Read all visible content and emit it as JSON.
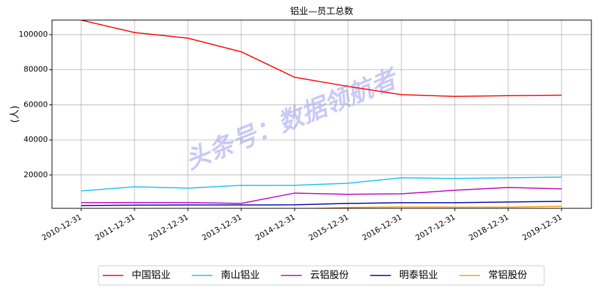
{
  "chart_data": {
    "type": "line",
    "title": "铝业—员工总数",
    "y_label": "(人)",
    "watermark": "头条号：数据领航者",
    "categories": [
      "2010-12-31",
      "2011-12-31",
      "2012-12-31",
      "2013-12-31",
      "2014-12-31",
      "2015-12-31",
      "2016-12-31",
      "2017-12-31",
      "2018-12-31",
      "2019-12-31"
    ],
    "series": [
      {
        "name": "中国铝业",
        "color": "#ff0000",
        "values": [
          108300,
          101200,
          98000,
          90200,
          75700,
          70500,
          65800,
          64800,
          65200,
          65500
        ]
      },
      {
        "name": "南山铝业",
        "color": "#1ebfef",
        "values": [
          10900,
          13300,
          12500,
          14100,
          14100,
          15300,
          18400,
          18000,
          18400,
          18800
        ]
      },
      {
        "name": "云铝股份",
        "color": "#bf00bf",
        "values": [
          4200,
          4300,
          4300,
          3800,
          9700,
          9000,
          9300,
          11300,
          12900,
          12100
        ]
      },
      {
        "name": "明泰铝业",
        "color": "#0000aa",
        "values": [
          2600,
          2800,
          2900,
          2900,
          3000,
          3800,
          4200,
          4200,
          4600,
          5000
        ]
      },
      {
        "name": "常铝股份",
        "color": "#ff9900",
        "values": [
          500,
          600,
          600,
          600,
          600,
          1500,
          1800,
          1700,
          1700,
          2200
        ]
      }
    ],
    "ylim": [
      1000,
      108300
    ],
    "yticks": [
      20000,
      40000,
      60000,
      80000,
      100000
    ],
    "grid": true,
    "legend": "bottom"
  }
}
